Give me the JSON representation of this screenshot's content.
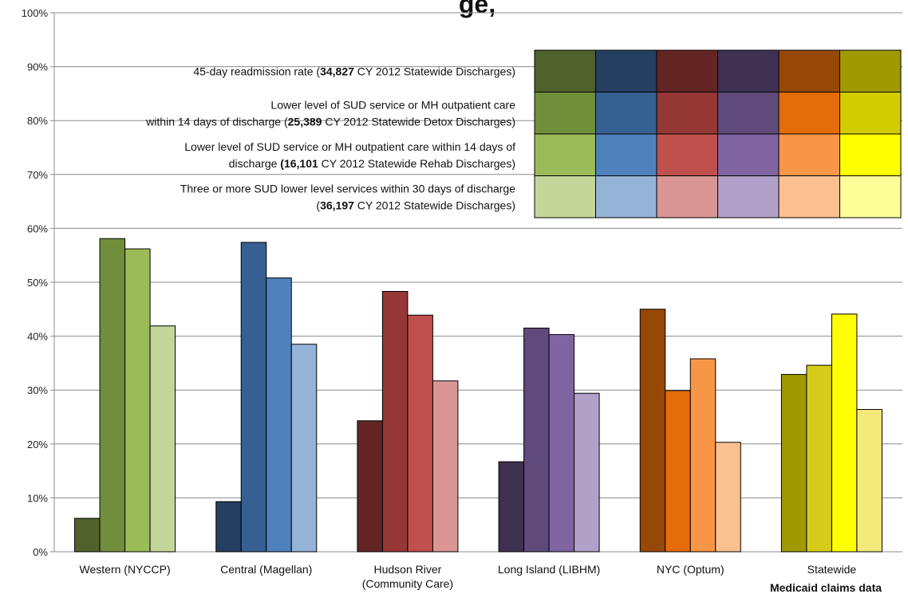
{
  "chart_data": {
    "type": "bar",
    "title_fragment": "ge, ",
    "categories": [
      [
        "Western (NYCCP)"
      ],
      [
        "Central (Magellan)"
      ],
      [
        "Hudson River",
        "(Community Care)"
      ],
      [
        "Long Island (LIBHM)"
      ],
      [
        "NYC (Optum)"
      ],
      [
        "Statewide"
      ]
    ],
    "ylim": [
      0,
      100
    ],
    "yticks": [
      0,
      10,
      20,
      30,
      40,
      50,
      60,
      70,
      80,
      90,
      100
    ],
    "ytick_suffix": "%",
    "grid": true,
    "source_note": "Medicaid claims data",
    "series": [
      {
        "name": "45-day readmission rate (34,827 CY 2012 Statewide Discharges)",
        "label_lines": [
          [
            {
              "t": "45-day readmission rate ("
            },
            {
              "t": "34,827",
              "b": true
            },
            {
              "t": " CY 2012 Statewide Discharges)"
            }
          ]
        ],
        "values": [
          6.2,
          9.3,
          24.3,
          16.7,
          45.0,
          32.9
        ]
      },
      {
        "name": "Lower level of SUD service or MH outpatient care within 14 days of discharge (25,389 CY 2012 Statewide Detox Discharges)",
        "label_lines": [
          [
            {
              "t": "Lower level of SUD service or MH outpatient care"
            }
          ],
          [
            {
              "t": "within 14 days of discharge ("
            },
            {
              "t": "25,389",
              "b": true
            },
            {
              "t": " CY 2012 Statewide Detox Discharges)"
            }
          ]
        ],
        "values": [
          58.1,
          57.4,
          48.3,
          41.5,
          29.9,
          34.6
        ]
      },
      {
        "name": "Lower level of SUD service or MH outpatient care within 14 days of discharge (16,101 CY 2012 Statewide Rehab Discharges)",
        "label_lines": [
          [
            {
              "t": "Lower level of SUD service or MH outpatient care within 14 days of"
            }
          ],
          [
            {
              "t": "discharge "
            },
            {
              "t": "(16,101",
              "b": true
            },
            {
              "t": " CY 2012 Statewide Rehab Discharges)"
            }
          ]
        ],
        "values": [
          56.2,
          50.8,
          43.9,
          40.3,
          35.8,
          44.1
        ]
      },
      {
        "name": "Three or more SUD lower level services within 30 days of discharge (36,197 CY 2012 Statewide Discharges)",
        "label_lines": [
          [
            {
              "t": "Three or more SUD lower level services within 30 days of discharge"
            }
          ],
          [
            {
              "t": "("
            },
            {
              "t": "36,197",
              "b": true
            },
            {
              "t": " CY 2012 Statewide Discharges)"
            }
          ]
        ],
        "values": [
          41.9,
          38.5,
          31.7,
          29.4,
          20.3,
          26.4
        ]
      }
    ],
    "colors": [
      [
        "#4f622b",
        "#718f3b",
        "#9bbb59",
        "#c4d79b"
      ],
      [
        "#243f60",
        "#366092",
        "#4f81bd",
        "#95b3d7"
      ],
      [
        "#632523",
        "#953735",
        "#c0504d",
        "#da9694"
      ],
      [
        "#3f3151",
        "#604a7b",
        "#8064a2",
        "#b1a0c7"
      ],
      [
        "#974706",
        "#e46c0a",
        "#f79646",
        "#fac090"
      ],
      [
        "#a09a00",
        "#d5cb18",
        "#ffff00",
        "#f4ea7c"
      ]
    ],
    "legend_grid_colors": [
      [
        "#4f622b",
        "#243f60",
        "#632523",
        "#3f3151",
        "#974706",
        "#a09a00"
      ],
      [
        "#718f3b",
        "#366092",
        "#953735",
        "#604a7b",
        "#e46c0a",
        "#d2cb00"
      ],
      [
        "#9bbb59",
        "#4f81bd",
        "#c0504d",
        "#8064a2",
        "#f79646",
        "#ffff00"
      ],
      [
        "#c4d79b",
        "#95b3d7",
        "#da9694",
        "#b1a0c7",
        "#fac090",
        "#ffff99"
      ]
    ],
    "legend_placement": "top-right"
  }
}
